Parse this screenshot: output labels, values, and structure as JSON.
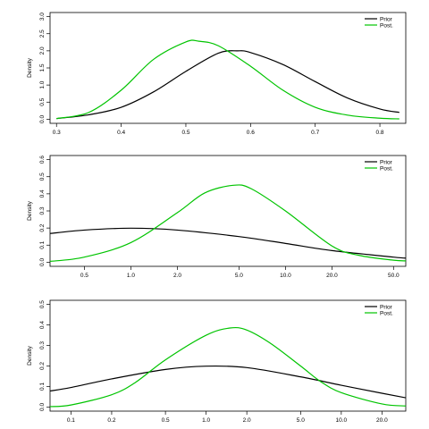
{
  "chart_data": [
    {
      "type": "line",
      "title": "",
      "xlabel": "",
      "ylabel": "Density",
      "x_scale": "linear",
      "xlim": [
        0.29,
        0.84
      ],
      "ylim": [
        0,
        3.0
      ],
      "x_ticks": [
        0.3,
        0.4,
        0.5,
        0.6,
        0.7,
        0.8
      ],
      "x_tick_labels": [
        "0.3",
        "0.4",
        "0.5",
        "0.6",
        "0.7",
        "0.8"
      ],
      "y_ticks": [
        0,
        0.5,
        1.0,
        1.5,
        2.0,
        2.5,
        3.0
      ],
      "y_tick_labels": [
        "0.0",
        "0.5",
        "1.0",
        "1.5",
        "2.0",
        "2.5",
        "3.0"
      ],
      "legend": {
        "position": "top-right",
        "entries": [
          "Prior",
          "Post."
        ]
      },
      "series": [
        {
          "name": "Prior",
          "color": "#000000",
          "x": [
            0.3,
            0.35,
            0.4,
            0.45,
            0.5,
            0.55,
            0.58,
            0.6,
            0.65,
            0.7,
            0.75,
            0.8,
            0.83
          ],
          "y": [
            0.02,
            0.13,
            0.35,
            0.8,
            1.4,
            1.93,
            2.0,
            1.95,
            1.6,
            1.1,
            0.62,
            0.3,
            0.2
          ]
        },
        {
          "name": "Post.",
          "color": "#00c400",
          "x": [
            0.3,
            0.35,
            0.4,
            0.45,
            0.5,
            0.52,
            0.55,
            0.6,
            0.65,
            0.7,
            0.75,
            0.8,
            0.83
          ],
          "y": [
            0.02,
            0.2,
            0.85,
            1.75,
            2.26,
            2.28,
            2.15,
            1.55,
            0.85,
            0.35,
            0.12,
            0.03,
            0.01
          ]
        }
      ]
    },
    {
      "type": "line",
      "title": "",
      "xlabel": "",
      "ylabel": "Density",
      "x_scale": "log",
      "xlim": [
        0.3,
        60
      ],
      "ylim": [
        0,
        0.6
      ],
      "x_ticks": [
        0.5,
        1,
        2,
        5,
        10,
        20,
        50
      ],
      "x_tick_labels": [
        "0.5",
        "1.0",
        "2.0",
        "5.0",
        "10.0",
        "20.0",
        "50.0"
      ],
      "y_ticks": [
        0,
        0.1,
        0.2,
        0.3,
        0.4,
        0.5,
        0.6
      ],
      "y_tick_labels": [
        "0.0",
        "0.1",
        "0.2",
        "0.3",
        "0.4",
        "0.5",
        "0.6"
      ],
      "legend": {
        "position": "top-right",
        "entries": [
          "Prior",
          "Post."
        ]
      },
      "series": [
        {
          "name": "Prior",
          "color": "#000000",
          "x": [
            0.3,
            0.5,
            1.0,
            2.0,
            5.0,
            10.0,
            20.0,
            50.0,
            60.0
          ],
          "y": [
            0.168,
            0.188,
            0.199,
            0.188,
            0.15,
            0.11,
            0.068,
            0.03,
            0.024
          ]
        },
        {
          "name": "Post.",
          "color": "#00c400",
          "x": [
            0.3,
            0.5,
            1.0,
            2.0,
            3.0,
            4.6,
            6.0,
            10.0,
            20.0,
            30.0,
            50.0,
            60.0
          ],
          "y": [
            0.005,
            0.03,
            0.115,
            0.29,
            0.405,
            0.45,
            0.43,
            0.3,
            0.095,
            0.04,
            0.012,
            0.008
          ]
        }
      ]
    },
    {
      "type": "line",
      "title": "",
      "xlabel": "",
      "ylabel": "Density",
      "x_scale": "log",
      "xlim": [
        0.07,
        30
      ],
      "ylim": [
        0,
        0.5
      ],
      "x_ticks": [
        0.1,
        0.2,
        0.5,
        1,
        2,
        5,
        10,
        20
      ],
      "x_tick_labels": [
        "0.1",
        "0.2",
        "0.5",
        "1.0",
        "2.0",
        "5.0",
        "10.0",
        "20.0"
      ],
      "y_ticks": [
        0,
        0.1,
        0.2,
        0.3,
        0.4,
        0.5
      ],
      "y_tick_labels": [
        "0.0",
        "0.1",
        "0.2",
        "0.3",
        "0.4",
        "0.5"
      ],
      "legend": {
        "position": "top-right",
        "entries": [
          "Prior",
          "Post."
        ]
      },
      "series": [
        {
          "name": "Prior",
          "color": "#000000",
          "x": [
            0.07,
            0.1,
            0.2,
            0.5,
            1.0,
            2.0,
            5.0,
            10.0,
            20.0,
            30.0
          ],
          "y": [
            0.078,
            0.095,
            0.137,
            0.183,
            0.199,
            0.192,
            0.147,
            0.106,
            0.067,
            0.045
          ]
        },
        {
          "name": "Post.",
          "color": "#00c400",
          "x": [
            0.07,
            0.1,
            0.2,
            0.3,
            0.5,
            1.0,
            1.5,
            2.0,
            3.0,
            5.0,
            7.0,
            10.0,
            20.0,
            30.0
          ],
          "y": [
            0.002,
            0.01,
            0.06,
            0.12,
            0.23,
            0.35,
            0.385,
            0.375,
            0.31,
            0.2,
            0.125,
            0.07,
            0.015,
            0.005
          ]
        }
      ]
    }
  ]
}
